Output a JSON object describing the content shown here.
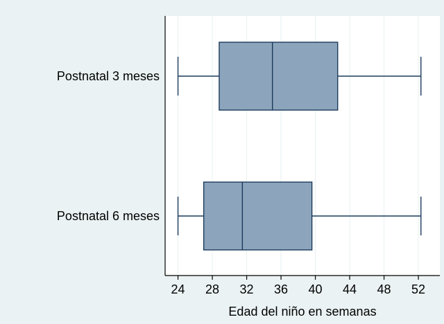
{
  "chart_data": {
    "type": "boxplot",
    "title": "",
    "xlabel": "Edad del niño en semanas",
    "ylabel": "",
    "xlim": [
      22.5,
      54.5
    ],
    "xticks": [
      24,
      28,
      32,
      36,
      40,
      44,
      48,
      52
    ],
    "xtick_labels": [
      "24",
      "28",
      "32",
      "36",
      "40",
      "44",
      "48",
      "52"
    ],
    "grid": true,
    "legend": "none",
    "categories": [
      "Postnatal 3 meses",
      "Postnatal 6 meses"
    ],
    "boxes": [
      {
        "label": "Postnatal 3 meses",
        "min": 24,
        "q1": 28.8,
        "median": 35,
        "q3": 42.6,
        "max": 52.3
      },
      {
        "label": "Postnatal 6 meses",
        "min": 24,
        "q1": 27,
        "median": 31.5,
        "q3": 39.6,
        "max": 52.3
      }
    ],
    "colors": {
      "box_fill": "#8da5bc",
      "box_stroke": "#1a3a5c",
      "plot_bg": "#ffffff",
      "outer_bg": "#eaf2f3",
      "grid": "#eaf2f3"
    }
  }
}
